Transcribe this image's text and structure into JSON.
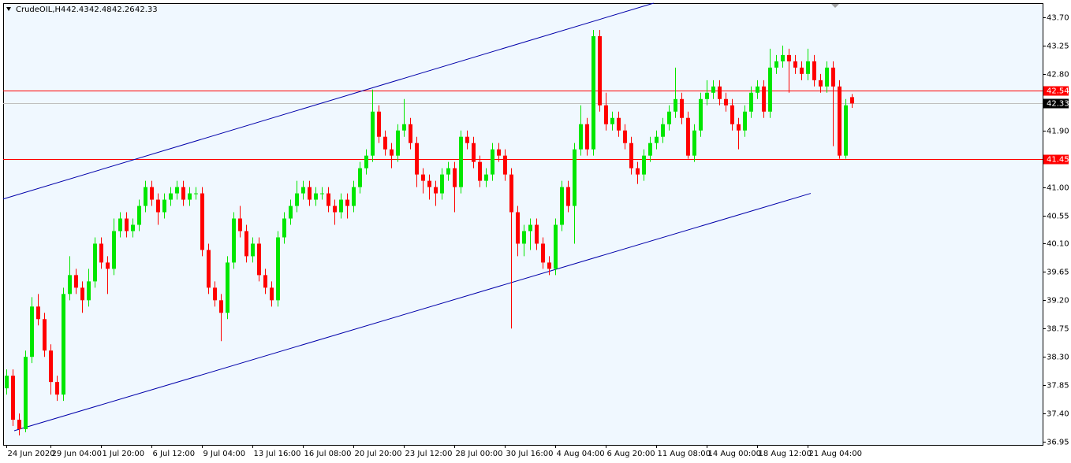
{
  "chart_data": {
    "type": "candlestick",
    "title": "CrudeOIL,H4",
    "open": [
      37.8,
      38.0,
      37.3,
      37.15,
      38.3,
      39.1,
      38.9,
      38.4,
      37.9,
      37.7,
      39.3,
      39.6,
      39.4,
      39.2,
      39.5,
      40.1,
      39.8,
      39.7,
      40.3,
      40.5,
      40.3,
      40.4,
      40.7,
      41.0,
      40.8,
      40.6,
      40.8,
      40.9,
      41.0,
      40.8,
      40.9,
      40.9,
      40.0,
      39.4,
      39.2,
      39.0,
      39.8,
      40.5,
      40.3,
      39.9,
      40.1,
      39.6,
      39.4,
      39.2,
      40.2,
      40.5,
      40.7,
      40.9,
      41.0,
      40.8,
      40.9,
      40.9,
      40.7,
      40.6,
      40.8,
      40.7,
      41.0,
      41.3,
      41.5,
      42.2,
      41.8,
      41.6,
      41.5,
      41.9,
      42.0,
      41.7,
      41.2,
      41.1,
      41.0,
      40.9,
      41.2,
      41.3,
      41.0,
      41.8,
      41.7,
      41.4,
      41.1,
      41.2,
      41.6,
      41.5,
      41.2,
      40.6,
      40.1,
      40.3,
      40.4,
      40.1,
      39.8,
      39.7,
      40.4,
      41.0,
      40.7,
      41.6,
      42.0,
      41.6,
      43.4,
      42.3,
      42.0,
      42.1,
      41.9,
      41.7,
      41.3,
      41.2,
      41.5,
      41.7,
      41.8,
      42.0,
      42.2,
      42.4,
      42.1,
      41.5,
      41.9,
      42.4,
      42.5,
      42.6,
      42.4,
      42.3,
      42.0,
      41.9,
      42.2,
      42.5,
      42.6,
      42.2,
      42.9,
      43.0,
      43.1,
      43.0,
      42.9,
      42.8,
      43.0,
      42.7,
      42.6,
      42.9,
      42.6,
      41.5,
      42.43
    ],
    "high": [
      38.1,
      38.1,
      37.4,
      38.4,
      39.25,
      39.3,
      39.0,
      38.5,
      38.0,
      39.4,
      39.9,
      39.7,
      39.5,
      39.7,
      40.2,
      40.2,
      39.9,
      40.5,
      40.6,
      40.6,
      40.5,
      40.8,
      41.1,
      41.1,
      40.9,
      40.9,
      41.0,
      41.1,
      41.1,
      41.0,
      41.0,
      41.0,
      40.1,
      39.5,
      39.3,
      39.9,
      40.6,
      40.7,
      40.4,
      40.2,
      40.2,
      39.7,
      39.5,
      40.3,
      40.6,
      40.8,
      41.1,
      41.1,
      41.1,
      41.0,
      41.0,
      41.0,
      40.8,
      40.9,
      40.9,
      41.1,
      41.4,
      41.6,
      42.55,
      42.3,
      41.9,
      41.7,
      42.0,
      42.4,
      42.1,
      41.8,
      41.3,
      41.2,
      41.1,
      41.3,
      41.4,
      41.4,
      41.9,
      41.9,
      41.8,
      41.5,
      41.3,
      41.7,
      41.7,
      41.6,
      41.3,
      40.7,
      40.4,
      40.5,
      40.5,
      40.2,
      39.9,
      40.5,
      41.1,
      41.1,
      41.7,
      42.3,
      42.1,
      43.5,
      43.5,
      42.5,
      42.2,
      42.2,
      42.0,
      41.8,
      41.4,
      41.6,
      41.8,
      41.9,
      42.1,
      42.3,
      42.9,
      42.5,
      42.2,
      42.0,
      42.5,
      42.7,
      42.7,
      42.7,
      42.5,
      42.4,
      42.1,
      42.3,
      42.6,
      42.7,
      42.7,
      43.2,
      43.1,
      43.25,
      43.2,
      43.1,
      43.0,
      43.2,
      43.1,
      42.8,
      43.0,
      43.0,
      42.7,
      42.4,
      42.48
    ],
    "low": [
      37.7,
      37.2,
      37.05,
      37.1,
      38.2,
      38.8,
      38.3,
      37.7,
      37.6,
      37.6,
      39.2,
      39.3,
      39.0,
      39.1,
      39.4,
      39.7,
      39.3,
      39.6,
      40.2,
      40.2,
      40.2,
      40.3,
      40.6,
      40.7,
      40.4,
      40.5,
      40.7,
      40.8,
      40.7,
      40.7,
      40.8,
      39.9,
      39.3,
      39.1,
      38.55,
      38.9,
      39.7,
      40.2,
      39.8,
      39.8,
      39.5,
      39.3,
      39.1,
      39.1,
      40.1,
      40.4,
      40.6,
      40.8,
      40.7,
      40.7,
      40.8,
      40.6,
      40.4,
      40.5,
      40.5,
      40.6,
      40.9,
      41.2,
      41.4,
      41.7,
      41.5,
      41.3,
      41.4,
      41.8,
      41.6,
      41.0,
      40.9,
      40.8,
      40.7,
      40.8,
      41.1,
      40.6,
      40.9,
      41.6,
      41.3,
      41.0,
      41.0,
      41.1,
      41.4,
      41.1,
      38.75,
      39.9,
      39.9,
      40.0,
      40.0,
      39.7,
      39.6,
      39.6,
      40.3,
      40.6,
      40.1,
      41.5,
      41.5,
      41.5,
      42.2,
      41.9,
      41.9,
      41.8,
      41.6,
      41.2,
      41.05,
      41.1,
      41.4,
      41.6,
      41.7,
      41.9,
      42.1,
      42.0,
      41.45,
      41.4,
      41.8,
      42.3,
      42.4,
      42.3,
      42.2,
      41.9,
      41.6,
      41.8,
      42.1,
      42.4,
      42.1,
      42.1,
      42.8,
      42.9,
      42.5,
      42.8,
      42.7,
      42.7,
      42.6,
      42.5,
      42.5,
      41.65,
      41.45,
      41.45,
      42.26
    ],
    "close": [
      38.0,
      37.3,
      37.15,
      38.3,
      39.1,
      38.9,
      38.4,
      37.9,
      37.7,
      39.3,
      39.6,
      39.4,
      39.2,
      39.5,
      40.1,
      39.8,
      39.7,
      40.3,
      40.5,
      40.3,
      40.4,
      40.7,
      41.0,
      40.8,
      40.6,
      40.8,
      40.9,
      41.0,
      40.8,
      40.9,
      40.9,
      40.0,
      39.4,
      39.2,
      39.0,
      39.8,
      40.5,
      40.3,
      39.9,
      40.1,
      39.6,
      39.4,
      39.2,
      40.2,
      40.5,
      40.7,
      40.9,
      41.0,
      40.8,
      40.9,
      40.9,
      40.7,
      40.6,
      40.8,
      40.7,
      41.0,
      41.3,
      41.5,
      42.2,
      41.8,
      41.6,
      41.5,
      41.9,
      42.0,
      41.7,
      41.2,
      41.1,
      41.0,
      40.9,
      41.2,
      41.3,
      41.0,
      41.8,
      41.7,
      41.4,
      41.1,
      41.2,
      41.6,
      41.5,
      41.2,
      40.6,
      40.1,
      40.3,
      40.4,
      40.1,
      39.8,
      39.7,
      40.4,
      41.0,
      40.7,
      41.6,
      42.0,
      41.6,
      43.4,
      42.3,
      42.0,
      42.1,
      41.9,
      41.7,
      41.3,
      41.2,
      41.5,
      41.7,
      41.8,
      42.0,
      42.2,
      42.4,
      42.1,
      41.5,
      41.9,
      42.4,
      42.5,
      42.6,
      42.4,
      42.3,
      42.0,
      41.9,
      42.2,
      42.5,
      42.6,
      42.2,
      42.9,
      43.0,
      43.1,
      43.0,
      42.9,
      42.8,
      43.0,
      42.7,
      42.6,
      42.9,
      42.6,
      41.5,
      42.3,
      42.33
    ],
    "up_color": "#00e600",
    "down_color": "#ff0000",
    "xlim": [
      -0.5,
      164.25
    ],
    "xticks": [
      {
        "value": 0,
        "label": "24 Jun 2020"
      },
      {
        "value": 7,
        "label": "29 Jun 04:00"
      },
      {
        "value": 15,
        "label": "1 Jul 20:00"
      },
      {
        "value": 23,
        "label": "6 Jul 12:00"
      },
      {
        "value": 31,
        "label": "9 Jul 04:00"
      },
      {
        "value": 39,
        "label": "13 Jul 16:00"
      },
      {
        "value": 47,
        "label": "16 Jul 08:00"
      },
      {
        "value": 55,
        "label": "20 Jul 20:00"
      },
      {
        "value": 63,
        "label": "23 Jul 12:00"
      },
      {
        "value": 71,
        "label": "28 Jul 00:00"
      },
      {
        "value": 79,
        "label": "30 Jul 16:00"
      },
      {
        "value": 87,
        "label": "4 Aug 04:00"
      },
      {
        "value": 95,
        "label": "6 Aug 20:00"
      },
      {
        "value": 103,
        "label": "11 Aug 08:00"
      },
      {
        "value": 111,
        "label": "14 Aug 00:00"
      },
      {
        "value": 119,
        "label": "18 Aug 12:00"
      },
      {
        "value": 127,
        "label": "21 Aug 04:00"
      }
    ],
    "ylim": [
      36.9,
      43.925
    ],
    "yticks": [
      {
        "value": 43.7,
        "label": "43.70"
      },
      {
        "value": 43.25,
        "label": "43.25"
      },
      {
        "value": 42.8,
        "label": "42.80"
      },
      {
        "value": 41.9,
        "label": "41.90"
      },
      {
        "value": 41.0,
        "label": "41.00"
      },
      {
        "value": 40.55,
        "label": "40.55"
      },
      {
        "value": 40.1,
        "label": "40.10"
      },
      {
        "value": 39.65,
        "label": "39.65"
      },
      {
        "value": 39.2,
        "label": "39.20"
      },
      {
        "value": 38.75,
        "label": "38.75"
      },
      {
        "value": 38.3,
        "label": "38.30"
      },
      {
        "value": 37.85,
        "label": "37.85"
      },
      {
        "value": 37.4,
        "label": "37.40"
      },
      {
        "value": 36.95,
        "label": "36.95"
      }
    ],
    "levels": [
      {
        "value": 42.54,
        "color": "#ff0000"
      },
      {
        "value": 41.45,
        "color": "#ff0000"
      }
    ],
    "current_price_color": "#c0c0c0",
    "trendlines": [
      {
        "x": [
          -0.5,
          102.6
        ],
        "y": [
          40.81,
          43.925
        ],
        "color": "#0000aa"
      },
      {
        "x": [
          1.25,
          127.5
        ],
        "y": [
          37.125,
          40.9
        ],
        "color": "#0000aa"
      }
    ]
  }
}
